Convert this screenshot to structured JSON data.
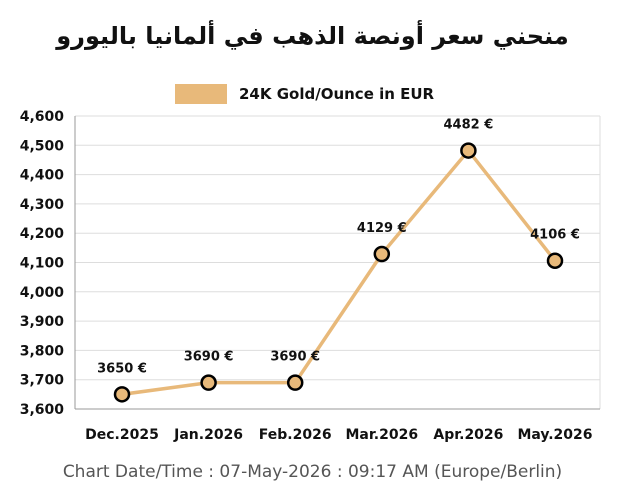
{
  "title": "منحني سعر أونصة الذهب في ألمانيا باليورو",
  "footer": "Chart Date/Time : 07-May-2026 : 09:17 AM (Europe/Berlin)",
  "chart_data": {
    "type": "line",
    "title": "منحني سعر أونصة الذهب في ألمانيا باليورو",
    "xlabel": "",
    "ylabel": "",
    "categories": [
      "Dec.2025",
      "Jan.2026",
      "Feb.2026",
      "Mar.2026",
      "Apr.2026",
      "May.2026"
    ],
    "series": [
      {
        "name": "24K Gold/Ounce in EUR",
        "values": [
          3650,
          3690,
          3690,
          4129,
          4482,
          4106
        ],
        "labels": [
          "3650 €",
          "3690 €",
          "3690 €",
          "4129 €",
          "4482 €",
          "4106 €"
        ]
      }
    ],
    "ylim": [
      3600,
      4600
    ],
    "yticks": [
      3600,
      3700,
      3800,
      3900,
      4000,
      4100,
      4200,
      4300,
      4400,
      4500,
      4600
    ],
    "ytick_labels": [
      "3,600",
      "3,700",
      "3,800",
      "3,900",
      "4,000",
      "4,100",
      "4,200",
      "4,300",
      "4,400",
      "4,500",
      "4,600"
    ],
    "grid": true,
    "legend_position": "top",
    "colors": {
      "line": "#E8B97A",
      "marker_fill": "#E8B97A",
      "marker_edge": "#000000",
      "grid": "#DDDDDD",
      "text": "#111111"
    }
  }
}
